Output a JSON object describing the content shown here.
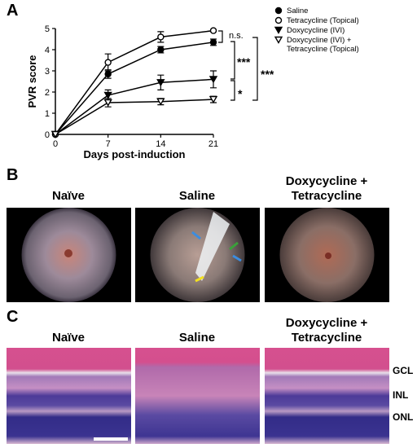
{
  "panels": {
    "a": "A",
    "b": "B",
    "c": "C"
  },
  "chart_data": {
    "type": "line",
    "xlabel": "Days post-induction",
    "ylabel": "PVR score",
    "x": [
      0,
      7,
      14,
      21
    ],
    "xlim": [
      0,
      21
    ],
    "xticks": [
      0,
      7,
      14,
      21
    ],
    "ylim": [
      0,
      5
    ],
    "yticks": [
      0,
      1,
      2,
      3,
      4,
      5
    ],
    "series": [
      {
        "name": "Saline",
        "color": "#000000",
        "marker": "circle-filled",
        "values": [
          0,
          2.85,
          4.0,
          4.35
        ],
        "errors": [
          0,
          0.2,
          0.15,
          0.15
        ]
      },
      {
        "name": "Tetracycline (Topical)",
        "color": "#000000",
        "marker": "circle-open",
        "values": [
          0,
          3.4,
          4.6,
          4.9
        ],
        "errors": [
          0,
          0.4,
          0.25,
          0.05
        ]
      },
      {
        "name": "Doxycycline (IVI)",
        "color": "#000000",
        "marker": "triangle-filled",
        "values": [
          0,
          1.85,
          2.45,
          2.6
        ],
        "errors": [
          0,
          0.25,
          0.35,
          0.4
        ]
      },
      {
        "name": "Doxycycline (IVI) + Tetracycline (Topical)",
        "color": "#000000",
        "marker": "triangle-open",
        "values": [
          0,
          1.5,
          1.55,
          1.65
        ],
        "errors": [
          0,
          0.2,
          0.15,
          0.15
        ]
      }
    ],
    "annotations": [
      "n.s.",
      "***",
      "*",
      "***"
    ]
  },
  "fundus": {
    "labels": [
      "Naïve",
      "Saline",
      "Doxycycline + Tetracycline"
    ]
  },
  "histology": {
    "labels": [
      "Naïve",
      "Saline",
      "Doxycycline + Tetracycline"
    ],
    "layers": [
      "GCL",
      "INL",
      "ONL"
    ]
  }
}
